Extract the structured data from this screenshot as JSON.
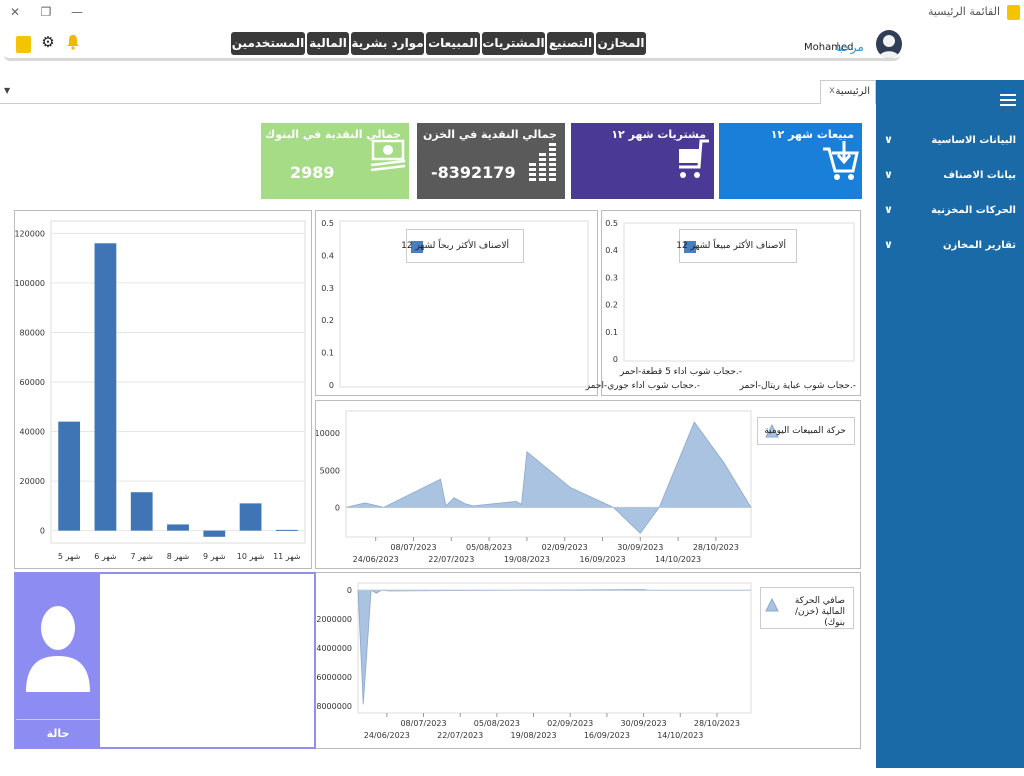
{
  "window": {
    "title": "القائمة الرئيسية",
    "close_glyph": "✕",
    "restore_glyph": "❐",
    "minimize_glyph": "—"
  },
  "menubar": {
    "welcome": "مرحبا",
    "username": "Mohamed",
    "items": [
      "المخازن",
      "التصنيع",
      "المشتريات",
      "المبيعات",
      "موارد بشرية",
      "المالية",
      "المستخدمين"
    ]
  },
  "tabs": [
    {
      "label": "الرئيسية",
      "close": "x"
    }
  ],
  "sidebar": {
    "items": [
      "البيانات الاساسية",
      "بيانات الاصناف",
      "الحركات المخزنية",
      "تقارير المخازن"
    ]
  },
  "tiles": [
    {
      "title": "مبيعات شهر ١٢",
      "value": "",
      "color": "#1a7fd9",
      "icon": "cart-download-icon"
    },
    {
      "title": "مشتريات شهر ١٢",
      "value": "",
      "color": "#4a3a96",
      "icon": "cart-icon"
    },
    {
      "title": "جمالي النقدية في الخزن",
      "value": "-8392179",
      "color": "#5a5a5a",
      "icon": "equalizer-icon"
    },
    {
      "title": "جمالي النقدية في البنوك",
      "value": "2989",
      "color": "#a6dc86",
      "icon": "money-icon"
    }
  ],
  "charts": {
    "monthly_bar": {
      "type": "bar",
      "categories": [
        "شهر 5",
        "شهر 6",
        "شهر 7",
        "شهر 8",
        "شهر 9",
        "شهر 10",
        "شهر 11"
      ],
      "values": [
        44000,
        116000,
        15500,
        2500,
        -2500,
        11000,
        300
      ],
      "y_ticks": [
        0,
        20000,
        40000,
        60000,
        80000,
        100000,
        120000
      ],
      "ylim": [
        -5000,
        125000
      ],
      "color": "#3f75b5"
    },
    "top_profit": {
      "type": "bar",
      "legend": "ألاصناف الأكثر ربحاً لشهر 12",
      "y_ticks": [
        "0",
        "0.1",
        "0.2",
        "0.3",
        "0.4",
        "0.5"
      ]
    },
    "top_sales": {
      "type": "bar",
      "legend": "ألاصناف الأكثر مبيعاً لشهر 12",
      "y_ticks": [
        "0",
        "0.1",
        "0.2",
        "0.3",
        "0.4",
        "0.5"
      ],
      "x_labels": [
        "-.حجاب شوب اداء 5 قطعة-احمر",
        "-.حجاب شوب عباية ريتال-احمر",
        "-.حجاب شوب اداء جوري-احمر"
      ]
    },
    "daily_sales": {
      "type": "area",
      "legend": "حركة المبيعات اليومية",
      "x_dates": [
        "2023-06-13",
        "2023-06-20",
        "2023-06-27",
        "2023-07-18",
        "2023-07-20",
        "2023-07-23",
        "2023-07-27",
        "2023-07-30",
        "2023-08-15",
        "2023-08-17",
        "2023-08-19",
        "2023-09-04",
        "2023-09-20",
        "2023-09-30",
        "2023-10-07",
        "2023-10-20",
        "2023-10-31",
        "2023-11-10"
      ],
      "y_values": [
        0,
        600,
        0,
        3800,
        200,
        1300,
        500,
        200,
        800,
        400,
        7500,
        2700,
        0,
        -3500,
        0,
        11500,
        6000,
        0
      ],
      "x_tick_dates": [
        "24/06/2023",
        "08/07/2023",
        "22/07/2023",
        "05/08/2023",
        "19/08/2023",
        "02/09/2023",
        "16/09/2023",
        "30/09/2023",
        "14/10/2023",
        "28/10/2023"
      ],
      "y_ticks": [
        0,
        5000,
        10000
      ],
      "ylim": [
        -4000,
        13000
      ],
      "color": "#a9c3e0"
    },
    "net_finance": {
      "type": "area",
      "legend": "صافي الحركة المالية (خزن/بنوك)",
      "x_dates": [
        "2023-06-13",
        "2023-06-15",
        "2023-06-18",
        "2023-06-20",
        "2023-06-22",
        "2023-06-25",
        "2023-09-30",
        "2023-10-02",
        "2023-11-10"
      ],
      "y_values": [
        0,
        -7900000,
        0,
        -200000,
        0,
        -50000,
        50000,
        0,
        0
      ],
      "x_tick_dates": [
        "24/06/2023",
        "08/07/2023",
        "22/07/2023",
        "05/08/2023",
        "19/08/2023",
        "02/09/2023",
        "16/09/2023",
        "30/09/2023",
        "14/10/2023",
        "28/10/2023"
      ],
      "y_ticks": [
        0,
        -2000000,
        -4000000,
        -6000000,
        -8000000
      ],
      "ylim": [
        -8500000,
        500000
      ],
      "color": "#a9c3e0"
    }
  },
  "user_panel": {
    "status_label": "حالة المستخدمين"
  }
}
